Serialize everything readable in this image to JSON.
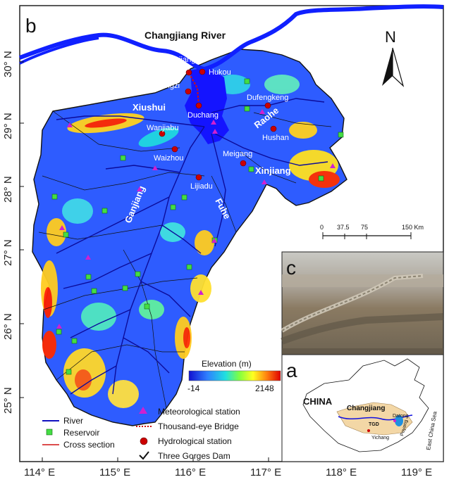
{
  "panel_b_label": "b",
  "panel_c_label": "c",
  "panel_a_label": "a",
  "north": "N",
  "river_title": "Changjiang River",
  "lat_ticks": [
    "30° N",
    "29° N",
    "28° N",
    "27° N",
    "26° N",
    "25° N"
  ],
  "lon_ticks": [
    "114° E",
    "115° E",
    "116° E",
    "117° E",
    "118° E",
    "119° E"
  ],
  "places": {
    "jiujiang": "Jiujiang",
    "hukou": "Hukou",
    "xingzi": "Xingzi",
    "duchang": "Duchang",
    "dufengkeng": "Dufengkeng",
    "wanjiabu": "Wanjiabu",
    "waizhou": "Waizhou",
    "meigang": "Meigang",
    "hushan": "Hushan",
    "lijiadu": "Lijiadu"
  },
  "rivers": {
    "xiushui": "Xiushui",
    "raohe": "Raohe",
    "xinjiang": "Xinjiang",
    "ganjiang": "Ganjiang",
    "fuhe": "Fuhe"
  },
  "scale": {
    "ticks": [
      "0",
      "37.5",
      "75",
      "150 Km"
    ]
  },
  "elevation": {
    "title": "Elevation (m)",
    "min": "-14",
    "max": "2148"
  },
  "legend": {
    "river": "River",
    "reservoir": "Reservoir",
    "cross_section": "Cross section",
    "met_station": "Meteorological station",
    "bridge": "Thousand-eye Bridge",
    "hydro_station": "Hydrological station",
    "dam": "Three Gorges Dam"
  },
  "inset": {
    "country": "CHINA",
    "changjiang": "Changjiang",
    "tgd": "TGD",
    "yichang": "Yichang",
    "datong": "Datong",
    "poyang": "Poyang",
    "sea": "East China Sea"
  },
  "colors": {
    "lake": "#1a1aff",
    "lowland": "#2f5cff",
    "highland": "#ffcf20",
    "peak": "#e00000",
    "river": "#1010c0",
    "reservoir": "#44dd44",
    "met": "#d020d0",
    "hydro": "#cc0000"
  }
}
